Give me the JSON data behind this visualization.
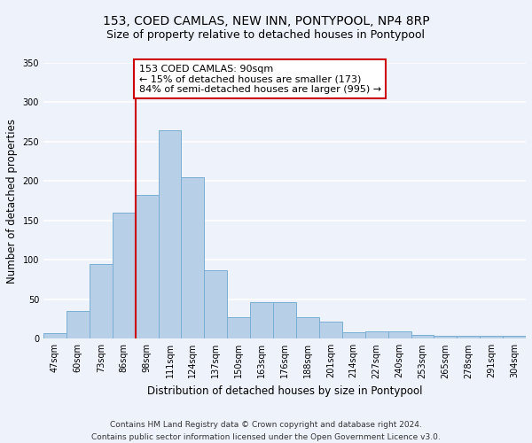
{
  "title": "153, COED CAMLAS, NEW INN, PONTYPOOL, NP4 8RP",
  "subtitle": "Size of property relative to detached houses in Pontypool",
  "xlabel": "Distribution of detached houses by size in Pontypool",
  "ylabel": "Number of detached properties",
  "categories": [
    "47sqm",
    "60sqm",
    "73sqm",
    "86sqm",
    "98sqm",
    "111sqm",
    "124sqm",
    "137sqm",
    "150sqm",
    "163sqm",
    "176sqm",
    "188sqm",
    "201sqm",
    "214sqm",
    "227sqm",
    "240sqm",
    "253sqm",
    "265sqm",
    "278sqm",
    "291sqm",
    "304sqm"
  ],
  "values": [
    7,
    35,
    95,
    160,
    183,
    265,
    205,
    87,
    27,
    47,
    47,
    27,
    22,
    8,
    9,
    9,
    5,
    4,
    4,
    4,
    4
  ],
  "bar_color": "#b8cfe8",
  "bar_edge_color": "#7aaed4",
  "vline_bin_index": 3.5,
  "annotation_title": "153 COED CAMLAS: 90sqm",
  "annotation_line1": "← 15% of detached houses are smaller (173)",
  "annotation_line2": "84% of semi-detached houses are larger (995) →",
  "vline_color": "#cc0000",
  "annotation_box_color": "#ffffff",
  "annotation_box_edge_color": "#cc0000",
  "footer_line1": "Contains HM Land Registry data © Crown copyright and database right 2024.",
  "footer_line2": "Contains public sector information licensed under the Open Government Licence v3.0.",
  "bg_color": "#eef2fb",
  "grid_color": "#ffffff",
  "ylim": [
    0,
    350
  ],
  "yticks": [
    0,
    50,
    100,
    150,
    200,
    250,
    300,
    350
  ],
  "title_fontsize": 10,
  "subtitle_fontsize": 9,
  "axis_label_fontsize": 8.5,
  "tick_fontsize": 7,
  "footer_fontsize": 6.5,
  "annotation_fontsize": 8
}
